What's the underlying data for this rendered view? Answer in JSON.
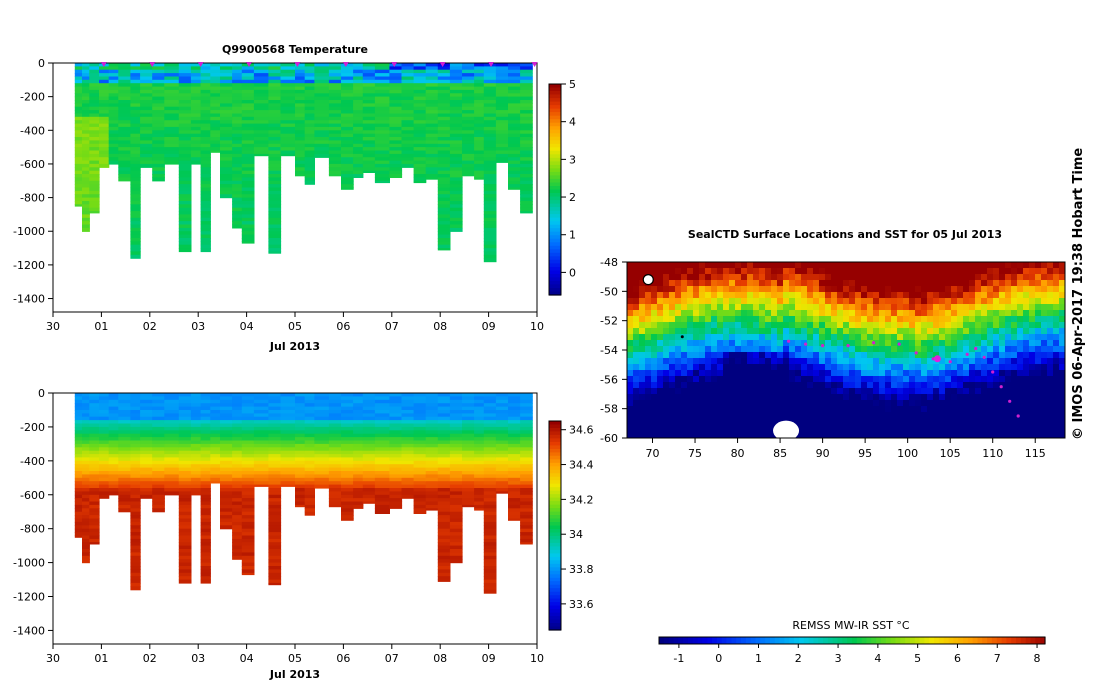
{
  "chart_data": [
    {
      "type": "heatmap",
      "title": "Q9900568  Temperature",
      "xlabel": "Jul 2013",
      "x_ticks": [
        "30",
        "01",
        "02",
        "03",
        "04",
        "05",
        "06",
        "07",
        "08",
        "09",
        "10"
      ],
      "y_ticks": [
        "0",
        "-200",
        "-400",
        "-600",
        "-800",
        "-1000",
        "-1200",
        "-1400"
      ],
      "ylim": [
        -1480,
        0
      ],
      "xlim_days": [
        0,
        10
      ],
      "profile_day_offsets": [
        0.45,
        0.6,
        0.75,
        0.95,
        1.15,
        1.35,
        1.6,
        1.8,
        2.05,
        2.3,
        2.6,
        2.85,
        3.05,
        3.25,
        3.45,
        3.7,
        3.9,
        4.15,
        4.45,
        4.7,
        5.0,
        5.2,
        5.4,
        5.7,
        5.95,
        6.2,
        6.4,
        6.65,
        6.95,
        7.2,
        7.45,
        7.7,
        7.95,
        8.2,
        8.45,
        8.7,
        8.9,
        9.15,
        9.4,
        9.65
      ],
      "profile_max_depths": [
        -850,
        -1000,
        -890,
        -620,
        -600,
        -700,
        -1160,
        -620,
        -700,
        -600,
        -1120,
        -600,
        -1120,
        -530,
        -800,
        -980,
        -1070,
        -550,
        -1130,
        -550,
        -670,
        -720,
        -560,
        -670,
        -750,
        -680,
        -650,
        -710,
        -680,
        -620,
        -710,
        -690,
        -1110,
        -1000,
        -670,
        -690,
        -1180,
        -590,
        -750,
        -890
      ],
      "surface_markers_day": [
        1.05,
        2.05,
        3.05,
        4.05,
        5.05,
        6.05,
        7.05,
        8.05,
        9.05,
        9.95
      ],
      "colorbar": {
        "range": [
          -0.6,
          5.0
        ],
        "ticks": [
          "0",
          "1",
          "2",
          "3",
          "4",
          "5"
        ]
      }
    },
    {
      "type": "heatmap",
      "title": "",
      "xlabel": "Jul 2013",
      "x_ticks": [
        "30",
        "01",
        "02",
        "03",
        "04",
        "05",
        "06",
        "07",
        "08",
        "09",
        "10"
      ],
      "y_ticks": [
        "0",
        "-200",
        "-400",
        "-600",
        "-800",
        "-1000",
        "-1200",
        "-1400"
      ],
      "ylim": [
        -1480,
        0
      ],
      "xlim_days": [
        0,
        10
      ],
      "colorbar": {
        "range": [
          33.45,
          34.65
        ],
        "ticks": [
          "33.6",
          "33.8",
          "34",
          "34.2",
          "34.4",
          "34.6"
        ]
      }
    },
    {
      "type": "heatmap",
      "title": "SealCTD Surface Locations and SST for 05 Jul 2013",
      "x_ticks": [
        "70",
        "75",
        "80",
        "85",
        "90",
        "95",
        "100",
        "105",
        "110",
        "115"
      ],
      "y_ticks": [
        "-48",
        "-50",
        "-52",
        "-54",
        "-56",
        "-58",
        "-60"
      ],
      "xlim": [
        67,
        118.5
      ],
      "ylim": [
        -60,
        -48
      ],
      "colorbar_label": "REMSS MW-IR SST °C",
      "colorbar": {
        "range": [
          -1.5,
          8.2
        ],
        "ticks": [
          "-1",
          "0",
          "1",
          "2",
          "3",
          "4",
          "5",
          "6",
          "7",
          "8"
        ]
      }
    }
  ],
  "credit": "©  IMOS 06-Apr-2017 19:38 Hobart Time"
}
